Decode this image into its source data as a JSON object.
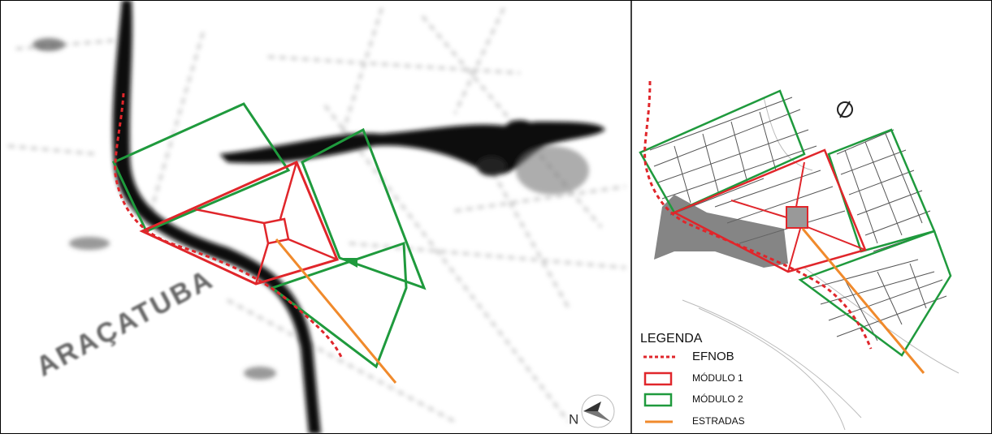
{
  "left_map": {
    "place_label": "ARAÇATUBA",
    "north_label": "N"
  },
  "legend": {
    "title": "LEGENDA",
    "items": [
      {
        "label": "EFNOB",
        "color": "#e0262b",
        "style": "dotted"
      },
      {
        "label": "MÓDULO 1",
        "color": "#e0262b",
        "style": "box"
      },
      {
        "label": "MÓDULO 2",
        "color": "#1f9a3d",
        "style": "box"
      },
      {
        "label": "ESTRADAS",
        "color": "#f08a2c",
        "style": "line"
      }
    ]
  }
}
